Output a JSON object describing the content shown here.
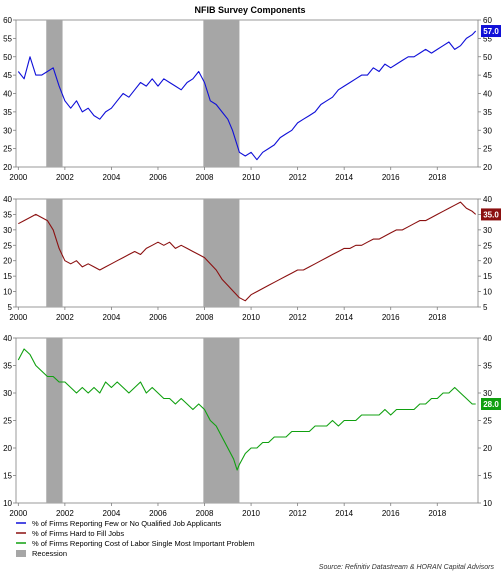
{
  "title": "NFIB Survey Components",
  "source": "Source: Refinitiv Datastream & HORAN Capital Advisors",
  "colors": {
    "recession": "#a6a6a6",
    "axis": "#555555"
  },
  "chart_data": [
    {
      "type": "line",
      "name": "panel-1",
      "x_range": [
        1999.9,
        2019.75
      ],
      "ylim": [
        20,
        60
      ],
      "yticks": [
        20,
        25,
        30,
        35,
        40,
        45,
        50,
        55,
        60
      ],
      "xticks": [
        2000,
        2002,
        2004,
        2006,
        2008,
        2010,
        2012,
        2014,
        2016,
        2018
      ],
      "recessions": [
        [
          2001.2,
          2001.9
        ],
        [
          2007.95,
          2009.5
        ]
      ],
      "series": [
        {
          "name": "% of Firms Reporting Few or No Qualified Job Applicants",
          "color": "#1010d8",
          "last_value": "57.0",
          "points": [
            [
              2000.0,
              46
            ],
            [
              2000.25,
              44
            ],
            [
              2000.5,
              50
            ],
            [
              2000.75,
              45
            ],
            [
              2001.0,
              45
            ],
            [
              2001.25,
              46
            ],
            [
              2001.5,
              47
            ],
            [
              2001.75,
              42
            ],
            [
              2002.0,
              38
            ],
            [
              2002.25,
              36
            ],
            [
              2002.5,
              38
            ],
            [
              2002.75,
              35
            ],
            [
              2003.0,
              36
            ],
            [
              2003.25,
              34
            ],
            [
              2003.5,
              33
            ],
            [
              2003.75,
              35
            ],
            [
              2004.0,
              36
            ],
            [
              2004.25,
              38
            ],
            [
              2004.5,
              40
            ],
            [
              2004.75,
              39
            ],
            [
              2005.0,
              41
            ],
            [
              2005.25,
              43
            ],
            [
              2005.5,
              42
            ],
            [
              2005.75,
              44
            ],
            [
              2006.0,
              42
            ],
            [
              2006.25,
              44
            ],
            [
              2006.5,
              43
            ],
            [
              2006.75,
              42
            ],
            [
              2007.0,
              41
            ],
            [
              2007.25,
              43
            ],
            [
              2007.5,
              44
            ],
            [
              2007.75,
              46
            ],
            [
              2008.0,
              43
            ],
            [
              2008.25,
              38
            ],
            [
              2008.5,
              37
            ],
            [
              2008.75,
              35
            ],
            [
              2009.0,
              33
            ],
            [
              2009.2,
              30
            ],
            [
              2009.5,
              24
            ],
            [
              2009.75,
              23
            ],
            [
              2010.0,
              24
            ],
            [
              2010.25,
              22
            ],
            [
              2010.5,
              24
            ],
            [
              2010.75,
              25
            ],
            [
              2011.0,
              26
            ],
            [
              2011.25,
              28
            ],
            [
              2011.5,
              29
            ],
            [
              2011.75,
              30
            ],
            [
              2012.0,
              32
            ],
            [
              2012.25,
              33
            ],
            [
              2012.5,
              34
            ],
            [
              2012.75,
              35
            ],
            [
              2013.0,
              37
            ],
            [
              2013.25,
              38
            ],
            [
              2013.5,
              39
            ],
            [
              2013.75,
              41
            ],
            [
              2014.0,
              42
            ],
            [
              2014.25,
              43
            ],
            [
              2014.5,
              44
            ],
            [
              2014.75,
              45
            ],
            [
              2015.0,
              45
            ],
            [
              2015.25,
              47
            ],
            [
              2015.5,
              46
            ],
            [
              2015.75,
              48
            ],
            [
              2016.0,
              47
            ],
            [
              2016.25,
              48
            ],
            [
              2016.5,
              49
            ],
            [
              2016.75,
              50
            ],
            [
              2017.0,
              50
            ],
            [
              2017.25,
              51
            ],
            [
              2017.5,
              52
            ],
            [
              2017.75,
              51
            ],
            [
              2018.0,
              52
            ],
            [
              2018.25,
              53
            ],
            [
              2018.5,
              54
            ],
            [
              2018.75,
              52
            ],
            [
              2019.0,
              53
            ],
            [
              2019.25,
              55
            ],
            [
              2019.5,
              56
            ],
            [
              2019.65,
              57
            ]
          ]
        }
      ]
    },
    {
      "type": "line",
      "name": "panel-2",
      "x_range": [
        1999.9,
        2019.75
      ],
      "ylim": [
        5,
        40
      ],
      "yticks": [
        5,
        10,
        15,
        20,
        25,
        30,
        35,
        40
      ],
      "xticks": [
        2000,
        2002,
        2004,
        2006,
        2008,
        2010,
        2012,
        2014,
        2016,
        2018
      ],
      "recessions": [
        [
          2001.2,
          2001.9
        ],
        [
          2007.95,
          2009.5
        ]
      ],
      "series": [
        {
          "name": "% of Firms Hard to Fill Jobs",
          "color": "#8b1010",
          "last_value": "35.0",
          "points": [
            [
              2000.0,
              32
            ],
            [
              2000.25,
              33
            ],
            [
              2000.5,
              34
            ],
            [
              2000.75,
              35
            ],
            [
              2001.0,
              34
            ],
            [
              2001.25,
              33
            ],
            [
              2001.5,
              30
            ],
            [
              2001.75,
              24
            ],
            [
              2002.0,
              20
            ],
            [
              2002.25,
              19
            ],
            [
              2002.5,
              20
            ],
            [
              2002.75,
              18
            ],
            [
              2003.0,
              19
            ],
            [
              2003.25,
              18
            ],
            [
              2003.5,
              17
            ],
            [
              2003.75,
              18
            ],
            [
              2004.0,
              19
            ],
            [
              2004.25,
              20
            ],
            [
              2004.5,
              21
            ],
            [
              2004.75,
              22
            ],
            [
              2005.0,
              23
            ],
            [
              2005.25,
              22
            ],
            [
              2005.5,
              24
            ],
            [
              2005.75,
              25
            ],
            [
              2006.0,
              26
            ],
            [
              2006.25,
              25
            ],
            [
              2006.5,
              26
            ],
            [
              2006.75,
              24
            ],
            [
              2007.0,
              25
            ],
            [
              2007.25,
              24
            ],
            [
              2007.5,
              23
            ],
            [
              2007.75,
              22
            ],
            [
              2008.0,
              21
            ],
            [
              2008.25,
              19
            ],
            [
              2008.5,
              17
            ],
            [
              2008.75,
              14
            ],
            [
              2009.0,
              12
            ],
            [
              2009.25,
              10
            ],
            [
              2009.5,
              8
            ],
            [
              2009.75,
              7
            ],
            [
              2010.0,
              9
            ],
            [
              2010.25,
              10
            ],
            [
              2010.5,
              11
            ],
            [
              2010.75,
              12
            ],
            [
              2011.0,
              13
            ],
            [
              2011.25,
              14
            ],
            [
              2011.5,
              15
            ],
            [
              2011.75,
              16
            ],
            [
              2012.0,
              17
            ],
            [
              2012.25,
              17
            ],
            [
              2012.5,
              18
            ],
            [
              2012.75,
              19
            ],
            [
              2013.0,
              20
            ],
            [
              2013.25,
              21
            ],
            [
              2013.5,
              22
            ],
            [
              2013.75,
              23
            ],
            [
              2014.0,
              24
            ],
            [
              2014.25,
              24
            ],
            [
              2014.5,
              25
            ],
            [
              2014.75,
              25
            ],
            [
              2015.0,
              26
            ],
            [
              2015.25,
              27
            ],
            [
              2015.5,
              27
            ],
            [
              2015.75,
              28
            ],
            [
              2016.0,
              29
            ],
            [
              2016.25,
              30
            ],
            [
              2016.5,
              30
            ],
            [
              2016.75,
              31
            ],
            [
              2017.0,
              32
            ],
            [
              2017.25,
              33
            ],
            [
              2017.5,
              33
            ],
            [
              2017.75,
              34
            ],
            [
              2018.0,
              35
            ],
            [
              2018.25,
              36
            ],
            [
              2018.5,
              37
            ],
            [
              2018.75,
              38
            ],
            [
              2019.0,
              39
            ],
            [
              2019.25,
              37
            ],
            [
              2019.5,
              36
            ],
            [
              2019.65,
              35
            ]
          ]
        }
      ]
    },
    {
      "type": "line",
      "name": "panel-3",
      "x_range": [
        1999.9,
        2019.75
      ],
      "ylim": [
        10,
        40
      ],
      "yticks": [
        10,
        15,
        20,
        25,
        30,
        35,
        40
      ],
      "xticks": [
        2000,
        2002,
        2004,
        2006,
        2008,
        2010,
        2012,
        2014,
        2016,
        2018
      ],
      "recessions": [
        [
          2001.2,
          2001.9
        ],
        [
          2007.95,
          2009.5
        ]
      ],
      "series": [
        {
          "name": "% of Firms Reporting Cost of Labor Single Most Important Problem",
          "color": "#10a010",
          "last_value": "28.0",
          "points": [
            [
              2000.0,
              36
            ],
            [
              2000.25,
              38
            ],
            [
              2000.5,
              37
            ],
            [
              2000.75,
              35
            ],
            [
              2001.0,
              34
            ],
            [
              2001.25,
              33
            ],
            [
              2001.5,
              33
            ],
            [
              2001.75,
              32
            ],
            [
              2002.0,
              32
            ],
            [
              2002.25,
              31
            ],
            [
              2002.5,
              30
            ],
            [
              2002.75,
              31
            ],
            [
              2003.0,
              30
            ],
            [
              2003.25,
              31
            ],
            [
              2003.5,
              30
            ],
            [
              2003.75,
              32
            ],
            [
              2004.0,
              31
            ],
            [
              2004.25,
              32
            ],
            [
              2004.5,
              31
            ],
            [
              2004.75,
              30
            ],
            [
              2005.0,
              31
            ],
            [
              2005.25,
              32
            ],
            [
              2005.5,
              30
            ],
            [
              2005.75,
              31
            ],
            [
              2006.0,
              30
            ],
            [
              2006.25,
              29
            ],
            [
              2006.5,
              29
            ],
            [
              2006.75,
              28
            ],
            [
              2007.0,
              29
            ],
            [
              2007.25,
              28
            ],
            [
              2007.5,
              27
            ],
            [
              2007.75,
              28
            ],
            [
              2008.0,
              27
            ],
            [
              2008.25,
              25
            ],
            [
              2008.5,
              24
            ],
            [
              2008.75,
              22
            ],
            [
              2009.0,
              20
            ],
            [
              2009.25,
              18
            ],
            [
              2009.4,
              16
            ],
            [
              2009.5,
              17
            ],
            [
              2009.75,
              19
            ],
            [
              2010.0,
              20
            ],
            [
              2010.25,
              20
            ],
            [
              2010.5,
              21
            ],
            [
              2010.75,
              21
            ],
            [
              2011.0,
              22
            ],
            [
              2011.25,
              22
            ],
            [
              2011.5,
              22
            ],
            [
              2011.75,
              23
            ],
            [
              2012.0,
              23
            ],
            [
              2012.25,
              23
            ],
            [
              2012.5,
              23
            ],
            [
              2012.75,
              24
            ],
            [
              2013.0,
              24
            ],
            [
              2013.25,
              24
            ],
            [
              2013.5,
              25
            ],
            [
              2013.75,
              24
            ],
            [
              2014.0,
              25
            ],
            [
              2014.25,
              25
            ],
            [
              2014.5,
              25
            ],
            [
              2014.75,
              26
            ],
            [
              2015.0,
              26
            ],
            [
              2015.25,
              26
            ],
            [
              2015.5,
              26
            ],
            [
              2015.75,
              27
            ],
            [
              2016.0,
              26
            ],
            [
              2016.25,
              27
            ],
            [
              2016.5,
              27
            ],
            [
              2016.75,
              27
            ],
            [
              2017.0,
              27
            ],
            [
              2017.25,
              28
            ],
            [
              2017.5,
              28
            ],
            [
              2017.75,
              29
            ],
            [
              2018.0,
              29
            ],
            [
              2018.25,
              30
            ],
            [
              2018.5,
              30
            ],
            [
              2018.75,
              31
            ],
            [
              2019.0,
              30
            ],
            [
              2019.25,
              29
            ],
            [
              2019.5,
              28
            ],
            [
              2019.65,
              28
            ]
          ]
        }
      ]
    }
  ],
  "legend": {
    "items": [
      {
        "label": "% of Firms Reporting Few or No Qualified Job Applicants",
        "color": "#1010d8",
        "kind": "line"
      },
      {
        "label": "% of Firms Hard to Fill Jobs",
        "color": "#8b1010",
        "kind": "line"
      },
      {
        "label": "% of Firms Reporting Cost of Labor Single Most Important Problem",
        "color": "#10a010",
        "kind": "line"
      },
      {
        "label": "Recession",
        "color": "#a6a6a6",
        "kind": "box"
      }
    ]
  }
}
